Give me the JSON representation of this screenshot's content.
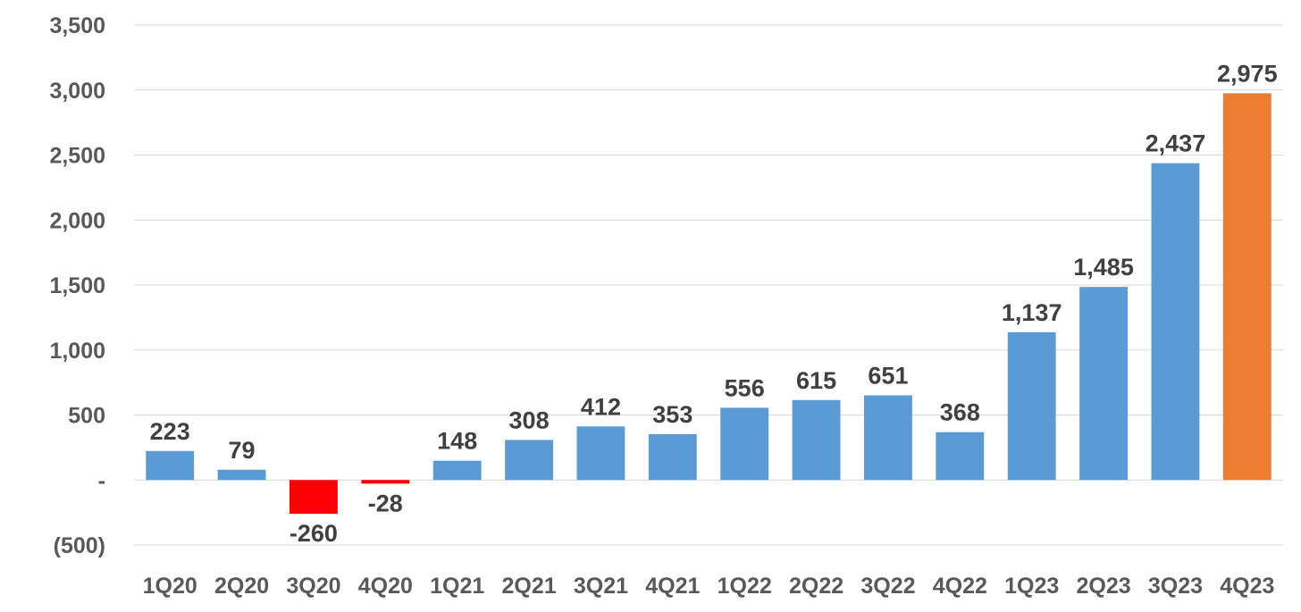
{
  "chart_data": {
    "type": "bar",
    "title": "",
    "xlabel": "",
    "ylabel": "",
    "ylim": [
      -500,
      3500
    ],
    "yticks": [
      {
        "value": 3500,
        "label": "3,500"
      },
      {
        "value": 3000,
        "label": "3,000"
      },
      {
        "value": 2500,
        "label": "2,500"
      },
      {
        "value": 2000,
        "label": "2,000"
      },
      {
        "value": 1500,
        "label": "1,500"
      },
      {
        "value": 1000,
        "label": "1,000"
      },
      {
        "value": 500,
        "label": "500"
      },
      {
        "value": 0,
        "label": "-"
      },
      {
        "value": -500,
        "label": "(500)"
      }
    ],
    "grid": true,
    "legend": "none",
    "colors": {
      "positive": "#5b9bd5",
      "negative": "#ff0000",
      "highlight": "#ed7d31",
      "grid": "#d9d9d9"
    },
    "categories": [
      "1Q20",
      "2Q20",
      "3Q20",
      "4Q20",
      "1Q21",
      "2Q21",
      "3Q21",
      "4Q21",
      "1Q22",
      "2Q22",
      "3Q22",
      "4Q22",
      "1Q23",
      "2Q23",
      "3Q23",
      "4Q23"
    ],
    "values": [
      223,
      79,
      -260,
      -28,
      148,
      308,
      412,
      353,
      556,
      615,
      651,
      368,
      1137,
      1485,
      2437,
      2975
    ],
    "data_labels": [
      "223",
      "79",
      "-260",
      "-28",
      "148",
      "308",
      "412",
      "353",
      "556",
      "615",
      "651",
      "368",
      "1,137",
      "1,485",
      "2,437",
      "2,975"
    ],
    "highlight_index": 15
  }
}
